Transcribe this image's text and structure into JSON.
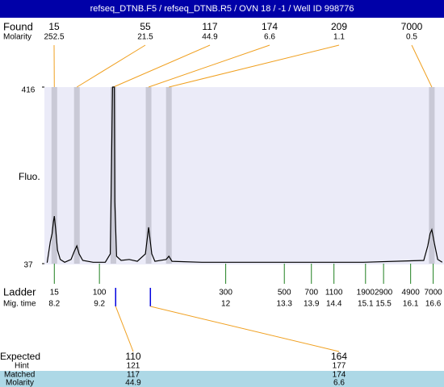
{
  "header": {
    "title": "refseq_DTNB.F5 / refseq_DTNB.R5 / OVN 18 / -1 / Well ID 998776"
  },
  "chart_data": {
    "type": "line",
    "ylabel": "Fluo.",
    "xlim": [
      7.98,
      16.84
    ],
    "ylim": [
      37,
      416
    ],
    "yticks": [
      37,
      416
    ],
    "color": "#000000",
    "x": [
      8.04,
      8.11,
      8.15,
      8.18,
      8.2,
      8.23,
      8.27,
      8.33,
      8.43,
      8.57,
      8.64,
      8.7,
      8.75,
      8.83,
      9.06,
      9.33,
      9.44,
      9.47,
      9.49,
      9.53,
      9.54,
      9.58,
      9.68,
      9.86,
      10.04,
      10.22,
      10.29,
      10.36,
      10.43,
      10.68,
      10.74,
      10.81,
      11.47,
      13.26,
      15.05,
      16.39,
      16.48,
      16.53,
      16.57,
      16.62,
      16.7,
      16.8
    ],
    "values": [
      39,
      84,
      101,
      127,
      139,
      110,
      66,
      46,
      40,
      46,
      63,
      75,
      58,
      44,
      40,
      40,
      58,
      257,
      416,
      416,
      170,
      53,
      44,
      46,
      42,
      58,
      115,
      58,
      42,
      46,
      53,
      42,
      40,
      40,
      40,
      44,
      75,
      101,
      110,
      84,
      46,
      40
    ]
  },
  "found": {
    "label": "Found",
    "sublabel": "Molarity",
    "peaks": [
      {
        "size": 15,
        "molarity": 252.5,
        "time": 8.2
      },
      {
        "size": 55,
        "molarity": 21.5,
        "time": 8.7
      },
      {
        "size": 117,
        "molarity": 44.9,
        "time": 9.51
      },
      {
        "size": 174,
        "molarity": 6.6,
        "time": 10.29
      },
      {
        "size": 209,
        "molarity": 1.1,
        "time": 10.74
      },
      {
        "size": 7000,
        "molarity": 0.5,
        "time": 16.57
      }
    ]
  },
  "ladder": {
    "label": "Ladder",
    "sublabel": "Mig. time",
    "peaks": [
      {
        "size": 15,
        "time": 8.2
      },
      {
        "size": 100,
        "time": 9.2
      },
      {
        "size": 300,
        "time": 12
      },
      {
        "size": 500,
        "time": 13.3
      },
      {
        "size": 700,
        "time": 13.9
      },
      {
        "size": 1100,
        "time": 14.4
      },
      {
        "size": 1900,
        "time": 15.1
      },
      {
        "size": 2900,
        "time": 15.5
      },
      {
        "size": 4900,
        "time": 16.1
      },
      {
        "size": 7000,
        "time": 16.6
      }
    ]
  },
  "expected": {
    "label": "Expected",
    "hint_label": "Hint",
    "matched_label": "Matched",
    "molarity_label": "Molarity",
    "columns": [
      {
        "size": 110,
        "hint": 121,
        "matched": 117,
        "molarity": 44.9,
        "time": 9.56
      },
      {
        "size": 164,
        "hint": 177,
        "matched": 174,
        "molarity": 6.6,
        "time": 10.33
      }
    ]
  }
}
